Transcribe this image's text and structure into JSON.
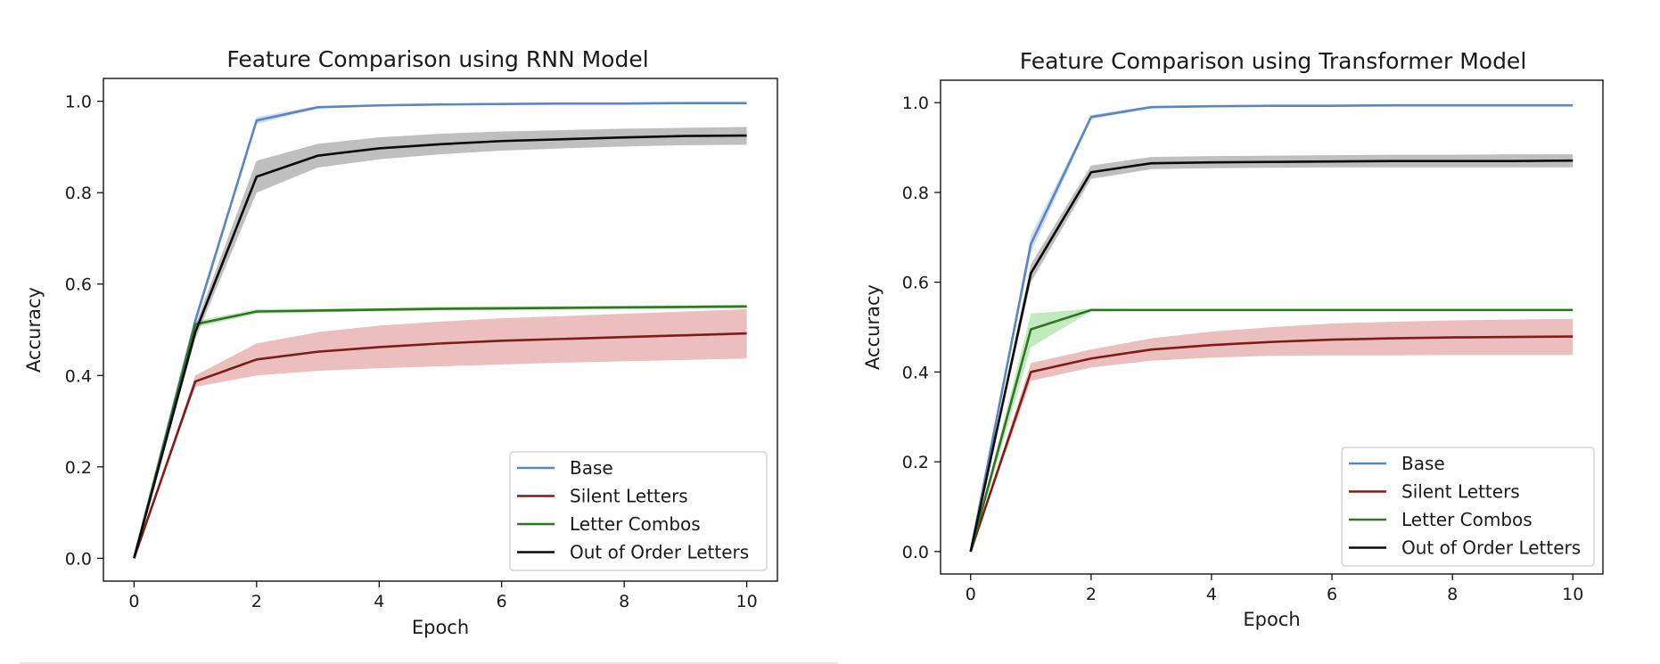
{
  "colors": {
    "base": "#5a87bd",
    "silent": "#7f1c17",
    "combos": "#2f7522",
    "order": "#0a0a0a",
    "base_fill": "#a9c6e4",
    "silent_fill": "#dd8a8a",
    "combos_fill": "#8fd88a",
    "order_fill": "#8a8a8a"
  },
  "chart_data": [
    {
      "type": "line",
      "title": "Feature Comparison using RNN Model",
      "xlabel": "Epoch",
      "ylabel": "Accuracy",
      "xlim": [
        -0.5,
        10.5
      ],
      "ylim": [
        -0.05,
        1.05
      ],
      "x_ticks": [
        "0",
        "2",
        "4",
        "6",
        "8",
        "10"
      ],
      "y_ticks": [
        "0.0",
        "0.2",
        "0.4",
        "0.6",
        "0.8",
        "1.0"
      ],
      "grid": false,
      "legend_position": "lower right",
      "x": [
        0,
        1,
        2,
        3,
        4,
        5,
        6,
        7,
        8,
        9,
        10
      ],
      "series": [
        {
          "name": "Base",
          "color_key": "base",
          "values": [
            0.0,
            0.52,
            0.958,
            0.987,
            0.991,
            0.993,
            0.994,
            0.995,
            0.995,
            0.996,
            0.996
          ],
          "lower": [
            0.0,
            0.51,
            0.95,
            0.984,
            0.989,
            0.991,
            0.992,
            0.993,
            0.993,
            0.994,
            0.994
          ],
          "upper": [
            0.0,
            0.53,
            0.966,
            0.99,
            0.993,
            0.995,
            0.996,
            0.997,
            0.997,
            0.998,
            0.998
          ]
        },
        {
          "name": "Silent Letters",
          "color_key": "silent",
          "values": [
            0.0,
            0.387,
            0.435,
            0.452,
            0.462,
            0.47,
            0.476,
            0.48,
            0.484,
            0.488,
            0.492
          ],
          "lower": [
            0.0,
            0.375,
            0.4,
            0.41,
            0.416,
            0.42,
            0.424,
            0.428,
            0.431,
            0.434,
            0.437
          ],
          "upper": [
            0.0,
            0.4,
            0.47,
            0.495,
            0.509,
            0.518,
            0.525,
            0.53,
            0.535,
            0.54,
            0.545
          ]
        },
        {
          "name": "Letter Combos",
          "color_key": "combos",
          "values": [
            0.0,
            0.512,
            0.54,
            0.542,
            0.544,
            0.546,
            0.547,
            0.548,
            0.549,
            0.55,
            0.551
          ],
          "lower": [
            0.0,
            0.505,
            0.535,
            0.538,
            0.54,
            0.542,
            0.543,
            0.544,
            0.545,
            0.546,
            0.547
          ],
          "upper": [
            0.0,
            0.519,
            0.545,
            0.546,
            0.548,
            0.55,
            0.551,
            0.552,
            0.553,
            0.554,
            0.555
          ]
        },
        {
          "name": "Out of Order Letters",
          "color_key": "order",
          "values": [
            0.0,
            0.495,
            0.835,
            0.881,
            0.897,
            0.906,
            0.913,
            0.917,
            0.921,
            0.924,
            0.925
          ],
          "lower": [
            0.0,
            0.48,
            0.8,
            0.855,
            0.873,
            0.884,
            0.892,
            0.897,
            0.901,
            0.904,
            0.905
          ],
          "upper": [
            0.0,
            0.51,
            0.87,
            0.907,
            0.921,
            0.929,
            0.934,
            0.937,
            0.94,
            0.942,
            0.944
          ]
        }
      ]
    },
    {
      "type": "line",
      "title": "Feature Comparison using Transformer Model",
      "xlabel": "Epoch",
      "ylabel": "Accuracy",
      "xlim": [
        -0.5,
        10.5
      ],
      "ylim": [
        -0.05,
        1.05
      ],
      "x_ticks": [
        "0",
        "2",
        "4",
        "6",
        "8",
        "10"
      ],
      "y_ticks": [
        "0.0",
        "0.2",
        "0.4",
        "0.6",
        "0.8",
        "1.0"
      ],
      "grid": false,
      "legend_position": "lower right",
      "x": [
        0,
        1,
        2,
        3,
        4,
        5,
        6,
        7,
        8,
        9,
        10
      ],
      "series": [
        {
          "name": "Base",
          "color_key": "base",
          "values": [
            0.0,
            0.685,
            0.968,
            0.99,
            0.992,
            0.993,
            0.993,
            0.994,
            0.994,
            0.994,
            0.994
          ],
          "lower": [
            0.0,
            0.665,
            0.963,
            0.987,
            0.99,
            0.991,
            0.991,
            0.992,
            0.992,
            0.992,
            0.992
          ],
          "upper": [
            0.0,
            0.705,
            0.973,
            0.993,
            0.994,
            0.995,
            0.995,
            0.996,
            0.996,
            0.996,
            0.996
          ]
        },
        {
          "name": "Silent Letters",
          "color_key": "silent",
          "values": [
            0.0,
            0.4,
            0.43,
            0.45,
            0.46,
            0.467,
            0.472,
            0.475,
            0.477,
            0.478,
            0.479
          ],
          "lower": [
            0.0,
            0.38,
            0.41,
            0.425,
            0.432,
            0.436,
            0.437,
            0.437,
            0.438,
            0.438,
            0.438
          ],
          "upper": [
            0.0,
            0.42,
            0.45,
            0.475,
            0.49,
            0.5,
            0.508,
            0.512,
            0.515,
            0.517,
            0.518
          ]
        },
        {
          "name": "Letter Combos",
          "color_key": "combos",
          "values": [
            0.0,
            0.495,
            0.538,
            0.538,
            0.538,
            0.538,
            0.538,
            0.538,
            0.538,
            0.538,
            0.538
          ],
          "lower": [
            0.0,
            0.455,
            0.535,
            0.536,
            0.536,
            0.536,
            0.536,
            0.536,
            0.536,
            0.536,
            0.536
          ],
          "upper": [
            0.0,
            0.53,
            0.541,
            0.54,
            0.54,
            0.54,
            0.54,
            0.54,
            0.54,
            0.54,
            0.54
          ]
        },
        {
          "name": "Out of Order Letters",
          "color_key": "order",
          "values": [
            0.0,
            0.62,
            0.845,
            0.865,
            0.867,
            0.868,
            0.869,
            0.87,
            0.87,
            0.87,
            0.871
          ],
          "lower": [
            0.0,
            0.6,
            0.83,
            0.852,
            0.854,
            0.855,
            0.856,
            0.856,
            0.856,
            0.856,
            0.856
          ],
          "upper": [
            0.0,
            0.64,
            0.86,
            0.879,
            0.881,
            0.882,
            0.883,
            0.884,
            0.884,
            0.885,
            0.885
          ]
        }
      ]
    }
  ]
}
